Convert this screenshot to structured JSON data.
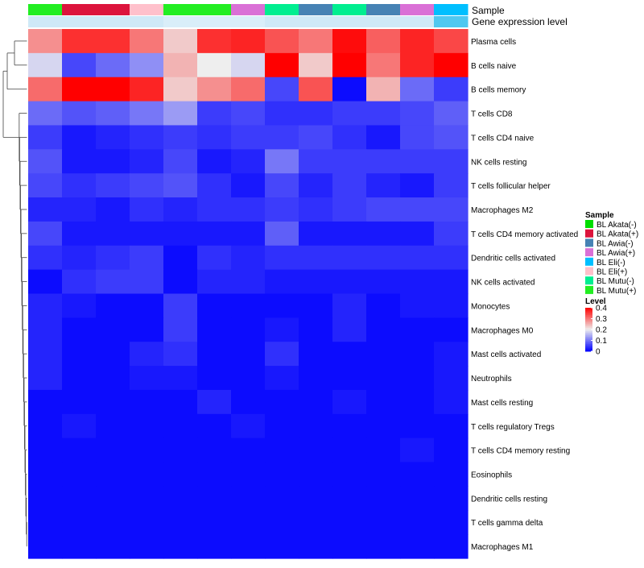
{
  "chart_data": {
    "type": "heatmap",
    "annotation_labels": {
      "sample": "Sample",
      "gene_expression": "Gene expression level"
    },
    "sample_annotation": [
      "BL Mutu(+)",
      "BL Akata(+)",
      "BL Akata(+)",
      "BL Eli(+)",
      "BL Mutu(+)",
      "BL Mutu(+)",
      "BL Awia(+)",
      "BL Mutu(-)",
      "BL Awia(-)",
      "BL Mutu(-)",
      "BL Awia(-)",
      "BL Awia(+)",
      "BL Eli(-)"
    ],
    "rows": [
      "Plasma cells",
      "B cells naive",
      "B cells memory",
      "T cells CD8",
      "T cells CD4 naive",
      "NK cells resting",
      "T cells follicular helper",
      "Macrophages M2",
      "T cells CD4 memory activated",
      "Dendritic cells activated",
      "NK cells activated",
      "Monocytes",
      "Macrophages M0",
      "Mast cells activated",
      "Neutrophils",
      "Mast cells resting",
      "T cells regulatory  Tregs",
      "T cells CD4 memory resting",
      "Eosinophils",
      "Dendritic cells resting",
      "T cells gamma delta",
      "Macrophages M1"
    ],
    "values": [
      [
        0.28,
        0.36,
        0.36,
        0.3,
        0.23,
        0.36,
        0.37,
        0.33,
        0.3,
        0.39,
        0.32,
        0.37,
        0.34
      ],
      [
        0.18,
        0.06,
        0.09,
        0.12,
        0.25,
        0.2,
        0.18,
        0.4,
        0.23,
        0.4,
        0.3,
        0.37,
        0.4
      ],
      [
        0.31,
        0.4,
        0.4,
        0.37,
        0.23,
        0.28,
        0.31,
        0.06,
        0.33,
        0.01,
        0.25,
        0.09,
        0.05
      ],
      [
        0.09,
        0.07,
        0.08,
        0.1,
        0.13,
        0.05,
        0.06,
        0.04,
        0.04,
        0.05,
        0.05,
        0.06,
        0.08
      ],
      [
        0.05,
        0.02,
        0.03,
        0.04,
        0.05,
        0.04,
        0.05,
        0.05,
        0.06,
        0.04,
        0.02,
        0.06,
        0.07
      ],
      [
        0.07,
        0.02,
        0.02,
        0.03,
        0.06,
        0.02,
        0.03,
        0.1,
        0.05,
        0.05,
        0.05,
        0.05,
        0.05
      ],
      [
        0.06,
        0.04,
        0.05,
        0.06,
        0.07,
        0.04,
        0.02,
        0.06,
        0.03,
        0.05,
        0.03,
        0.02,
        0.05
      ],
      [
        0.03,
        0.03,
        0.02,
        0.04,
        0.03,
        0.04,
        0.04,
        0.05,
        0.04,
        0.05,
        0.06,
        0.06,
        0.06
      ],
      [
        0.06,
        0.02,
        0.02,
        0.02,
        0.02,
        0.02,
        0.02,
        0.08,
        0.02,
        0.02,
        0.02,
        0.02,
        0.05
      ],
      [
        0.04,
        0.03,
        0.04,
        0.05,
        0.01,
        0.04,
        0.03,
        0.04,
        0.04,
        0.04,
        0.04,
        0.04,
        0.04
      ],
      [
        0.01,
        0.04,
        0.05,
        0.05,
        0.01,
        0.03,
        0.03,
        0.02,
        0.02,
        0.02,
        0.02,
        0.02,
        0.02
      ],
      [
        0.03,
        0.02,
        0.01,
        0.01,
        0.05,
        0.01,
        0.01,
        0.01,
        0.01,
        0.03,
        0.01,
        0.02,
        0.02
      ],
      [
        0.03,
        0.01,
        0.01,
        0.01,
        0.05,
        0.01,
        0.01,
        0.02,
        0.01,
        0.03,
        0.01,
        0.01,
        0.01
      ],
      [
        0.03,
        0.01,
        0.01,
        0.03,
        0.04,
        0.01,
        0.01,
        0.04,
        0.01,
        0.01,
        0.01,
        0.01,
        0.02
      ],
      [
        0.03,
        0.01,
        0.01,
        0.02,
        0.02,
        0.01,
        0.01,
        0.02,
        0.01,
        0.01,
        0.01,
        0.01,
        0.02
      ],
      [
        0.01,
        0.01,
        0.01,
        0.01,
        0.01,
        0.03,
        0.01,
        0.01,
        0.01,
        0.02,
        0.01,
        0.01,
        0.02
      ],
      [
        0.01,
        0.02,
        0.01,
        0.01,
        0.01,
        0.01,
        0.02,
        0.01,
        0.01,
        0.01,
        0.01,
        0.01,
        0.01
      ],
      [
        0.01,
        0.01,
        0.01,
        0.01,
        0.01,
        0.01,
        0.01,
        0.01,
        0.01,
        0.01,
        0.01,
        0.02,
        0.01
      ],
      [
        0.01,
        0.01,
        0.01,
        0.01,
        0.01,
        0.01,
        0.01,
        0.01,
        0.01,
        0.01,
        0.01,
        0.01,
        0.01
      ],
      [
        0.01,
        0.01,
        0.01,
        0.01,
        0.01,
        0.01,
        0.01,
        0.01,
        0.01,
        0.01,
        0.01,
        0.01,
        0.01
      ],
      [
        0.01,
        0.01,
        0.01,
        0.01,
        0.01,
        0.01,
        0.01,
        0.01,
        0.01,
        0.01,
        0.01,
        0.01,
        0.01
      ],
      [
        0.01,
        0.01,
        0.01,
        0.01,
        0.01,
        0.01,
        0.01,
        0.01,
        0.01,
        0.01,
        0.01,
        0.01,
        0.01
      ]
    ],
    "sample_legend": {
      "title": "Sample",
      "entries": [
        {
          "label": "BL Akata(-)",
          "color": "#00dd00"
        },
        {
          "label": "BL Akata(+)",
          "color": "#dc143c"
        },
        {
          "label": "BL Awia(-)",
          "color": "#4682b4"
        },
        {
          "label": "BL Awia(+)",
          "color": "#da70d6"
        },
        {
          "label": "BL Eli(-)",
          "color": "#00bfff"
        },
        {
          "label": "BL Eli(+)",
          "color": "#ffc0cb"
        },
        {
          "label": "BL Mutu(-)",
          "color": "#00ee90"
        },
        {
          "label": "BL Mutu(+)",
          "color": "#22ee22"
        }
      ]
    },
    "level_legend": {
      "title": "Level",
      "ticks": [
        {
          "value": 0.4,
          "label": "0.4"
        },
        {
          "value": 0.3,
          "label": "0.3"
        },
        {
          "value": 0.2,
          "label": "0.2"
        },
        {
          "value": 0.1,
          "label": "0.1"
        },
        {
          "value": 0,
          "label": "0"
        }
      ],
      "range": [
        0,
        0.4
      ]
    },
    "color_scale": {
      "low": "#0000ff",
      "mid": "#eeeeee",
      "high": "#ff0000",
      "mid_value": 0.2
    },
    "gene_expression_colors": [
      "#cfe9f7",
      "#cfe9f7",
      "#cfe9f7",
      "#cfe9f7",
      "#d9eef9",
      "#d9eef9",
      "#d9eef9",
      "#cfe9f7",
      "#cfe9f7",
      "#cfe9f7",
      "#cfe9f7",
      "#cfe9f7",
      "#4fc8f0"
    ]
  }
}
